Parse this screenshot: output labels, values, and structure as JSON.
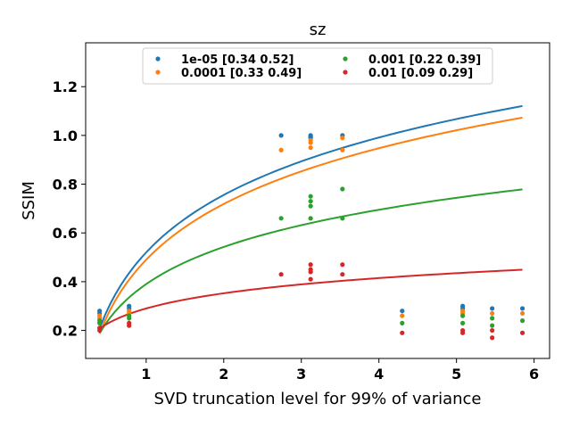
{
  "chart_data": {
    "type": "scatter",
    "title": "sz",
    "xlabel": "SVD truncation level for 99% of variance",
    "ylabel": "SSIM",
    "xlim": [
      0.22,
      6.2
    ],
    "ylim": [
      0.085,
      1.38
    ],
    "xticks": [
      1,
      2,
      3,
      4,
      5,
      6
    ],
    "yticks": [
      0.2,
      0.4,
      0.6,
      0.8,
      1.0,
      1.2
    ],
    "xtick_labels": [
      "1",
      "2",
      "3",
      "4",
      "5",
      "6"
    ],
    "ytick_labels": [
      "0.2",
      "0.4",
      "0.6",
      "0.8",
      "1.0",
      "1.2"
    ],
    "legend_position": "upper center",
    "grid": false,
    "series": [
      {
        "name": "1e-05 [0.34 0.52]",
        "color": "#1f77b4",
        "points": [
          [
            0.4,
            0.28
          ],
          [
            0.4,
            0.27
          ],
          [
            0.78,
            0.3
          ],
          [
            0.78,
            0.29
          ],
          [
            2.74,
            1.0
          ],
          [
            3.12,
            1.0
          ],
          [
            3.12,
            0.995
          ],
          [
            3.12,
            0.99
          ],
          [
            3.53,
            1.0
          ],
          [
            4.3,
            0.28
          ],
          [
            5.08,
            0.3
          ],
          [
            5.08,
            0.29
          ],
          [
            5.46,
            0.29
          ],
          [
            5.85,
            0.29
          ]
        ],
        "fit": {
          "a": 0.34,
          "b": 0.52
        }
      },
      {
        "name": "0.0001 [0.33 0.49]",
        "color": "#ff7f0e",
        "points": [
          [
            0.4,
            0.26
          ],
          [
            0.4,
            0.25
          ],
          [
            0.78,
            0.28
          ],
          [
            0.78,
            0.27
          ],
          [
            2.74,
            0.94
          ],
          [
            3.12,
            0.98
          ],
          [
            3.12,
            0.97
          ],
          [
            3.12,
            0.95
          ],
          [
            3.53,
            0.99
          ],
          [
            3.53,
            0.94
          ],
          [
            4.3,
            0.26
          ],
          [
            5.08,
            0.28
          ],
          [
            5.08,
            0.27
          ],
          [
            5.46,
            0.27
          ],
          [
            5.85,
            0.27
          ]
        ],
        "fit": {
          "a": 0.33,
          "b": 0.49
        }
      },
      {
        "name": "0.001 [0.22 0.39]",
        "color": "#2ca02c",
        "points": [
          [
            0.4,
            0.24
          ],
          [
            0.4,
            0.23
          ],
          [
            0.78,
            0.26
          ],
          [
            0.78,
            0.25
          ],
          [
            2.74,
            0.66
          ],
          [
            3.12,
            0.75
          ],
          [
            3.12,
            0.73
          ],
          [
            3.12,
            0.71
          ],
          [
            3.12,
            0.66
          ],
          [
            3.53,
            0.78
          ],
          [
            3.53,
            0.66
          ],
          [
            4.3,
            0.23
          ],
          [
            5.08,
            0.26
          ],
          [
            5.08,
            0.23
          ],
          [
            5.46,
            0.25
          ],
          [
            5.46,
            0.22
          ],
          [
            5.85,
            0.24
          ]
        ],
        "fit": {
          "a": 0.22,
          "b": 0.39
        }
      },
      {
        "name": "0.01 [0.09 0.29]",
        "color": "#d62728",
        "points": [
          [
            0.4,
            0.21
          ],
          [
            0.4,
            0.2
          ],
          [
            0.78,
            0.23
          ],
          [
            0.78,
            0.22
          ],
          [
            2.74,
            0.43
          ],
          [
            3.12,
            0.47
          ],
          [
            3.12,
            0.45
          ],
          [
            3.12,
            0.44
          ],
          [
            3.12,
            0.41
          ],
          [
            3.53,
            0.47
          ],
          [
            3.53,
            0.43
          ],
          [
            4.3,
            0.19
          ],
          [
            5.08,
            0.2
          ],
          [
            5.08,
            0.19
          ],
          [
            5.46,
            0.2
          ],
          [
            5.46,
            0.17
          ],
          [
            5.85,
            0.19
          ]
        ],
        "fit": {
          "a": 0.09,
          "b": 0.29
        }
      }
    ]
  }
}
